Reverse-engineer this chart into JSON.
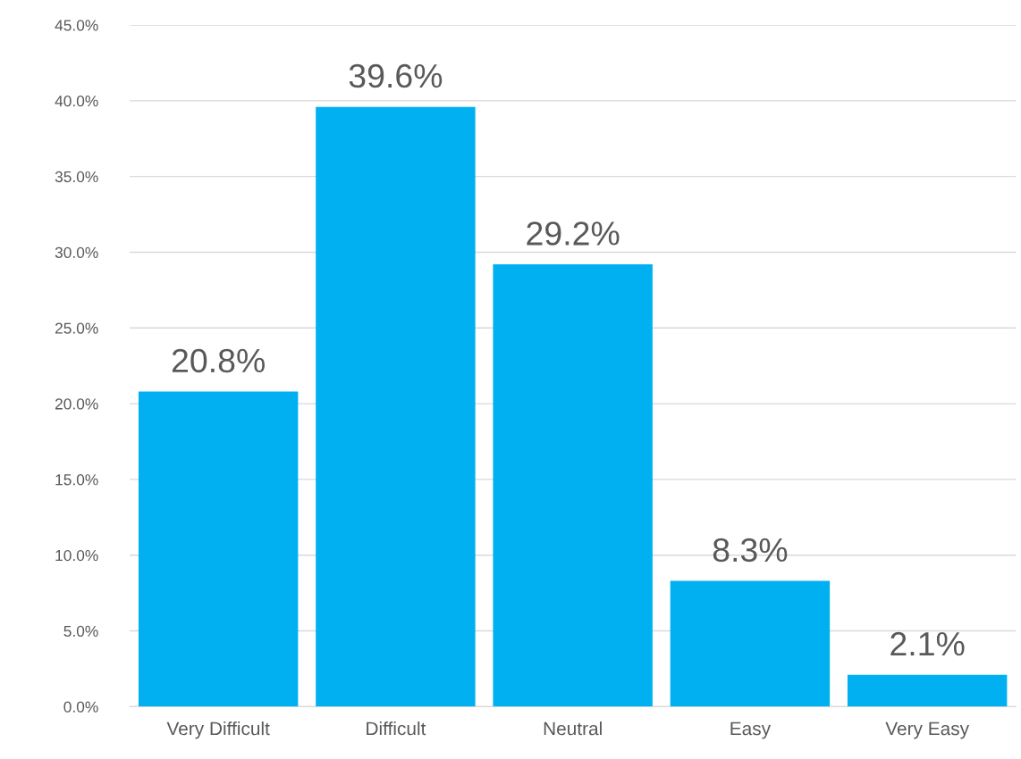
{
  "chart_data": {
    "type": "bar",
    "categories": [
      "Very Difficult",
      "Difficult",
      "Neutral",
      "Easy",
      "Very Easy"
    ],
    "values": [
      20.8,
      39.6,
      29.2,
      8.3,
      2.1
    ],
    "value_labels": [
      "20.8%",
      "39.6%",
      "29.2%",
      "8.3%",
      "2.1%"
    ],
    "color": "#00b0f0",
    "ylim": [
      0,
      45
    ],
    "yticks": [
      {
        "value": 0,
        "label": "0.0%"
      },
      {
        "value": 5,
        "label": "5.0%"
      },
      {
        "value": 10,
        "label": "10.0%"
      },
      {
        "value": 15,
        "label": "15.0%"
      },
      {
        "value": 20,
        "label": "20.0%"
      },
      {
        "value": 25,
        "label": "25.0%"
      },
      {
        "value": 30,
        "label": "30.0%"
      },
      {
        "value": 35,
        "label": "35.0%"
      },
      {
        "value": 40,
        "label": "40.0%"
      },
      {
        "value": 45,
        "label": "45.0%"
      }
    ],
    "grid": "y",
    "legend": false
  }
}
